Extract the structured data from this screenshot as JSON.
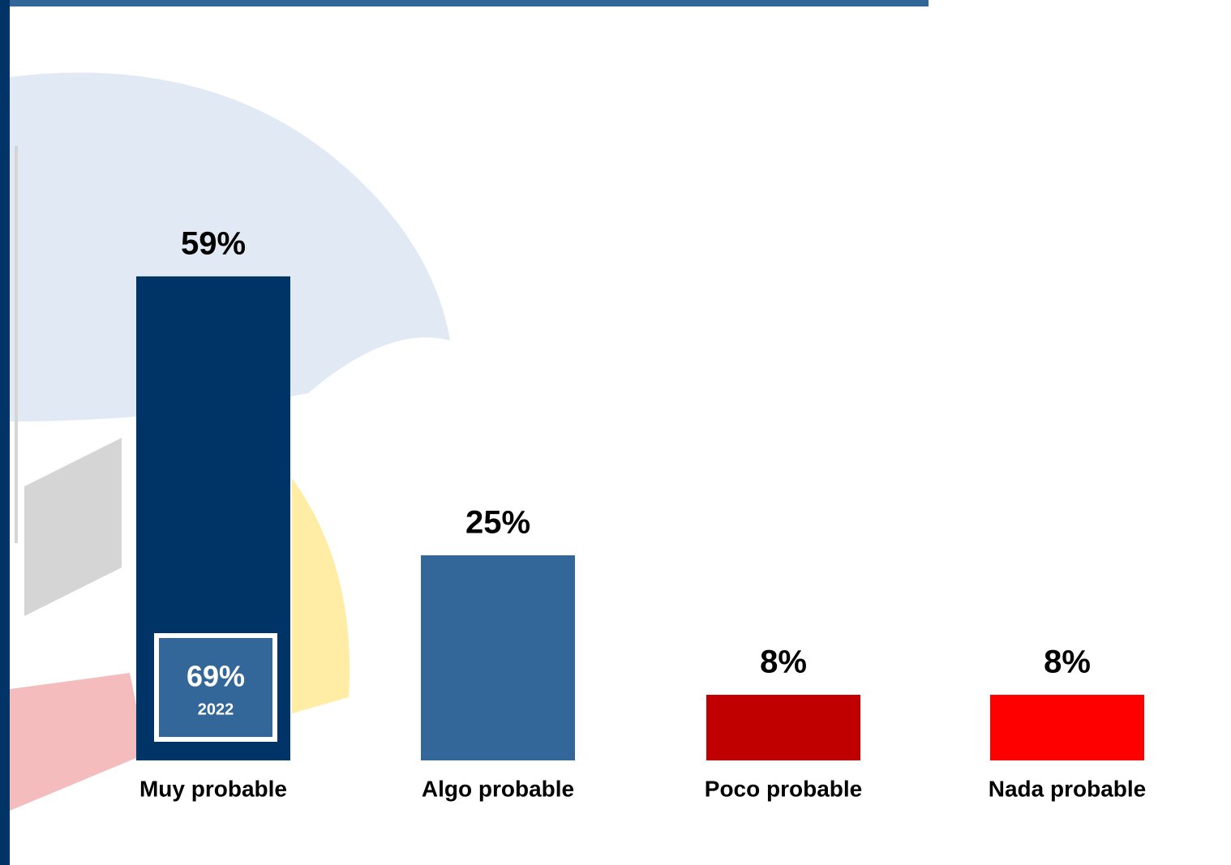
{
  "chart_data": {
    "type": "bar",
    "categories": [
      "Muy probable",
      "Algo probable",
      "Poco probable",
      "Nada probable"
    ],
    "values": [
      59,
      25,
      8,
      8
    ],
    "value_labels": [
      "59%",
      "25%",
      "8%",
      "8%"
    ],
    "colors": [
      "#003366",
      "#336699",
      "#c00000",
      "#ff0000"
    ],
    "annotation": {
      "text": "69%",
      "year": "2022"
    }
  }
}
